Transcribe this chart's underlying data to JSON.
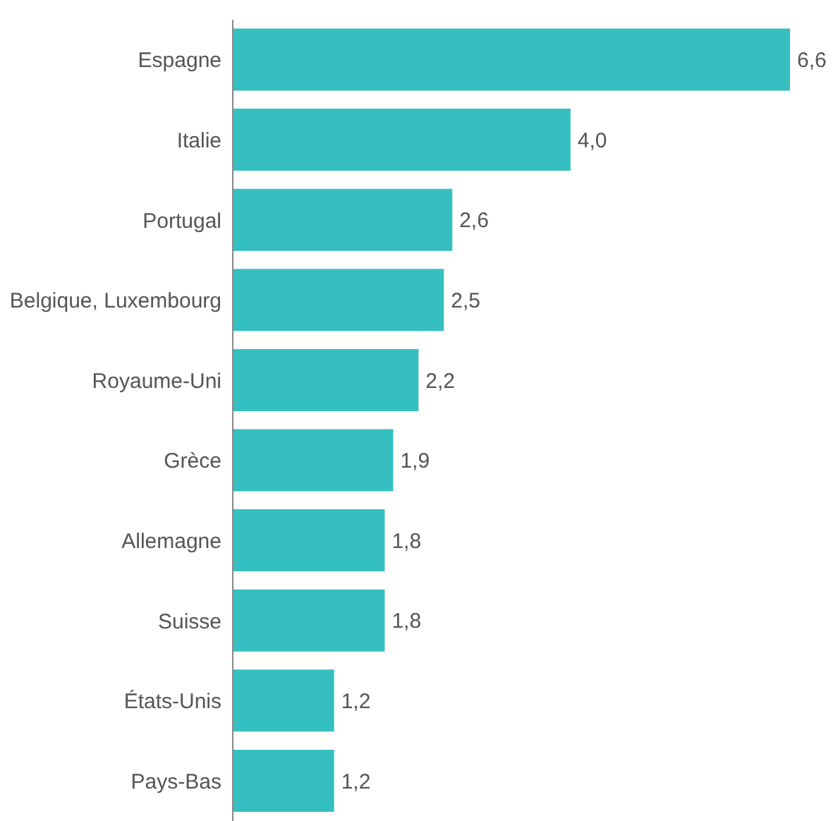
{
  "chart_data": {
    "type": "bar",
    "orientation": "horizontal",
    "categories": [
      "Espagne",
      "Italie",
      "Portugal",
      "Belgique, Luxembourg",
      "Royaume-Uni",
      "Grèce",
      "Allemagne",
      "Suisse",
      "États-Unis",
      "Pays-Bas"
    ],
    "values": [
      6.6,
      4.0,
      2.6,
      2.5,
      2.2,
      1.9,
      1.8,
      1.8,
      1.2,
      1.2
    ],
    "value_labels": [
      "6,6",
      "4,0",
      "2,6",
      "2,5",
      "2,2",
      "1,9",
      "1,8",
      "1,8",
      "1,2",
      "1,2"
    ],
    "color": "#35bfc0",
    "grid": false,
    "legend": false
  }
}
